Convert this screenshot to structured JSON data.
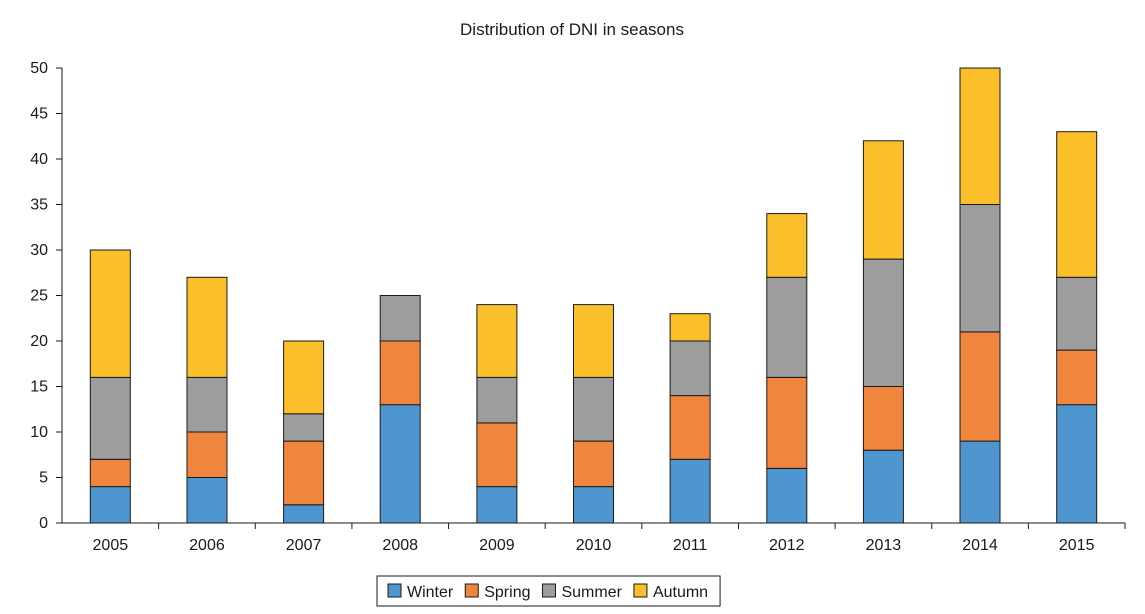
{
  "chart_data": {
    "type": "bar",
    "stacked": true,
    "title": "Distribution of DNI in seasons",
    "xlabel": "",
    "ylabel": "",
    "categories": [
      "2005",
      "2006",
      "2007",
      "2008",
      "2009",
      "2010",
      "2011",
      "2012",
      "2013",
      "2014",
      "2015"
    ],
    "series": [
      {
        "name": "Winter",
        "color": "#4f95d0",
        "values": [
          4,
          5,
          2,
          13,
          4,
          4,
          7,
          6,
          8,
          9,
          13
        ]
      },
      {
        "name": "Spring",
        "color": "#f0853d",
        "values": [
          3,
          5,
          7,
          7,
          7,
          5,
          7,
          10,
          7,
          12,
          6
        ]
      },
      {
        "name": "Summer",
        "color": "#9d9d9d",
        "values": [
          9,
          6,
          3,
          5,
          5,
          7,
          6,
          11,
          14,
          14,
          8
        ]
      },
      {
        "name": "Autumn",
        "color": "#fbbf2a",
        "values": [
          14,
          11,
          8,
          0,
          8,
          8,
          3,
          7,
          13,
          15,
          16
        ]
      }
    ],
    "ylim": [
      0,
      50
    ],
    "yticks": [
      0,
      5,
      10,
      15,
      20,
      25,
      30,
      35,
      40,
      45,
      50
    ],
    "grid": false,
    "legend_position": "bottom-center"
  }
}
